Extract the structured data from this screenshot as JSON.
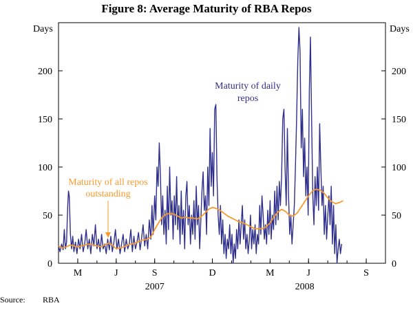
{
  "chart_data": {
    "type": "line",
    "title": "Figure 8: Average Maturity of RBA Repos",
    "left_axis_unit": "Days",
    "right_axis_unit": "Days",
    "ylim": [
      0,
      250
    ],
    "y_ticks": [
      0,
      50,
      100,
      150,
      200
    ],
    "x_range_months": [
      0,
      17
    ],
    "x_month_ticks": [
      {
        "label": "M",
        "month": 1
      },
      {
        "label": "J",
        "month": 3
      },
      {
        "label": "S",
        "month": 5
      },
      {
        "label": "D",
        "month": 8
      },
      {
        "label": "M",
        "month": 11
      },
      {
        "label": "J",
        "month": 13
      },
      {
        "label": "S",
        "month": 16
      }
    ],
    "year_labels": [
      {
        "label": "2007",
        "month": 5
      },
      {
        "label": "2008",
        "month": 12.8
      }
    ],
    "annotations": [
      {
        "lines": [
          "Maturity of daily",
          "repos"
        ],
        "series": "daily",
        "color": "#2e2e8c"
      },
      {
        "lines": [
          "Maturity of all repos",
          "outstanding"
        ],
        "series": "outstanding",
        "color": "#f79a2d"
      }
    ],
    "series": [
      {
        "name": "Maturity of daily repos",
        "color": "#2e2e8c",
        "points": [
          [
            0.0,
            18
          ],
          [
            0.08,
            12
          ],
          [
            0.16,
            20
          ],
          [
            0.24,
            14
          ],
          [
            0.3,
            35
          ],
          [
            0.36,
            15
          ],
          [
            0.42,
            22
          ],
          [
            0.48,
            60
          ],
          [
            0.52,
            75
          ],
          [
            0.56,
            70
          ],
          [
            0.62,
            30
          ],
          [
            0.68,
            15
          ],
          [
            0.74,
            28
          ],
          [
            0.8,
            12
          ],
          [
            0.88,
            22
          ],
          [
            0.96,
            10
          ],
          [
            1.04,
            25
          ],
          [
            1.12,
            15
          ],
          [
            1.2,
            30
          ],
          [
            1.28,
            12
          ],
          [
            1.36,
            20
          ],
          [
            1.44,
            35
          ],
          [
            1.52,
            15
          ],
          [
            1.6,
            25
          ],
          [
            1.68,
            10
          ],
          [
            1.76,
            30
          ],
          [
            1.84,
            18
          ],
          [
            1.92,
            40
          ],
          [
            2.0,
            15
          ],
          [
            2.08,
            25
          ],
          [
            2.16,
            12
          ],
          [
            2.24,
            30
          ],
          [
            2.32,
            15
          ],
          [
            2.4,
            20
          ],
          [
            2.48,
            10
          ],
          [
            2.56,
            25
          ],
          [
            2.64,
            14
          ],
          [
            2.72,
            28
          ],
          [
            2.8,
            12
          ],
          [
            2.88,
            22
          ],
          [
            2.96,
            35
          ],
          [
            3.04,
            15
          ],
          [
            3.12,
            25
          ],
          [
            3.2,
            10
          ],
          [
            3.28,
            20
          ],
          [
            3.36,
            30
          ],
          [
            3.44,
            12
          ],
          [
            3.52,
            25
          ],
          [
            3.6,
            15
          ],
          [
            3.68,
            20
          ],
          [
            3.76,
            35
          ],
          [
            3.84,
            12
          ],
          [
            3.92,
            28
          ],
          [
            4.0,
            15
          ],
          [
            4.08,
            22
          ],
          [
            4.16,
            32
          ],
          [
            4.24,
            14
          ],
          [
            4.32,
            26
          ],
          [
            4.4,
            40
          ],
          [
            4.48,
            18
          ],
          [
            4.56,
            30
          ],
          [
            4.64,
            15
          ],
          [
            4.72,
            45
          ],
          [
            4.8,
            25
          ],
          [
            4.86,
            60
          ],
          [
            4.92,
            30
          ],
          [
            5.0,
            70
          ],
          [
            5.06,
            45
          ],
          [
            5.12,
            100
          ],
          [
            5.18,
            80
          ],
          [
            5.24,
            125
          ],
          [
            5.3,
            90
          ],
          [
            5.36,
            40
          ],
          [
            5.42,
            70
          ],
          [
            5.48,
            30
          ],
          [
            5.54,
            55
          ],
          [
            5.6,
            20
          ],
          [
            5.66,
            80
          ],
          [
            5.72,
            35
          ],
          [
            5.78,
            100
          ],
          [
            5.84,
            50
          ],
          [
            5.9,
            65
          ],
          [
            5.96,
            25
          ],
          [
            6.02,
            70
          ],
          [
            6.08,
            40
          ],
          [
            6.14,
            90
          ],
          [
            6.2,
            35
          ],
          [
            6.26,
            60
          ],
          [
            6.32,
            20
          ],
          [
            6.38,
            75
          ],
          [
            6.44,
            30
          ],
          [
            6.5,
            55
          ],
          [
            6.56,
            15
          ],
          [
            6.62,
            70
          ],
          [
            6.68,
            85
          ],
          [
            6.74,
            40
          ],
          [
            6.8,
            60
          ],
          [
            6.86,
            20
          ],
          [
            6.92,
            50
          ],
          [
            6.98,
            30
          ],
          [
            7.04,
            65
          ],
          [
            7.1,
            25
          ],
          [
            7.16,
            80
          ],
          [
            7.22,
            40
          ],
          [
            7.28,
            60
          ],
          [
            7.34,
            15
          ],
          [
            7.4,
            45
          ],
          [
            7.46,
            75
          ],
          [
            7.52,
            95
          ],
          [
            7.58,
            55
          ],
          [
            7.64,
            70
          ],
          [
            7.7,
            30
          ],
          [
            7.76,
            100
          ],
          [
            7.82,
            60
          ],
          [
            7.88,
            140
          ],
          [
            7.94,
            80
          ],
          [
            8.0,
            115
          ],
          [
            8.06,
            70
          ],
          [
            8.12,
            160
          ],
          [
            8.18,
            165
          ],
          [
            8.24,
            90
          ],
          [
            8.3,
            50
          ],
          [
            8.36,
            30
          ],
          [
            8.42,
            60
          ],
          [
            8.48,
            20
          ],
          [
            8.54,
            45
          ],
          [
            8.6,
            10
          ],
          [
            8.66,
            30
          ],
          [
            8.72,
            5
          ],
          [
            8.78,
            25
          ],
          [
            8.84,
            15
          ],
          [
            8.9,
            40
          ],
          [
            8.96,
            10
          ],
          [
            9.02,
            30
          ],
          [
            9.08,
            0
          ],
          [
            9.14,
            20
          ],
          [
            9.2,
            5
          ],
          [
            9.26,
            35
          ],
          [
            9.32,
            15
          ],
          [
            9.38,
            45
          ],
          [
            9.44,
            20
          ],
          [
            9.5,
            40
          ],
          [
            9.56,
            60
          ],
          [
            9.62,
            25
          ],
          [
            9.68,
            45
          ],
          [
            9.74,
            15
          ],
          [
            9.8,
            30
          ],
          [
            9.86,
            10
          ],
          [
            9.92,
            25
          ],
          [
            9.98,
            50
          ],
          [
            10.04,
            15
          ],
          [
            10.1,
            35
          ],
          [
            10.16,
            20
          ],
          [
            10.22,
            40
          ],
          [
            10.28,
            10
          ],
          [
            10.34,
            30
          ],
          [
            10.4,
            20
          ],
          [
            10.46,
            60
          ],
          [
            10.52,
            30
          ],
          [
            10.58,
            70
          ],
          [
            10.64,
            50
          ],
          [
            10.7,
            25
          ],
          [
            10.76,
            40
          ],
          [
            10.82,
            20
          ],
          [
            10.88,
            55
          ],
          [
            10.94,
            30
          ],
          [
            11.0,
            65
          ],
          [
            11.06,
            25
          ],
          [
            11.12,
            50
          ],
          [
            11.18,
            35
          ],
          [
            11.24,
            75
          ],
          [
            11.3,
            40
          ],
          [
            11.36,
            80
          ],
          [
            11.42,
            45
          ],
          [
            11.48,
            85
          ],
          [
            11.54,
            60
          ],
          [
            11.6,
            90
          ],
          [
            11.66,
            150
          ],
          [
            11.72,
            160
          ],
          [
            11.78,
            100
          ],
          [
            11.84,
            60
          ],
          [
            11.9,
            140
          ],
          [
            11.96,
            70
          ],
          [
            12.02,
            30
          ],
          [
            12.08,
            50
          ],
          [
            12.14,
            20
          ],
          [
            12.2,
            40
          ],
          [
            12.26,
            60
          ],
          [
            12.32,
            100
          ],
          [
            12.38,
            150
          ],
          [
            12.44,
            210
          ],
          [
            12.5,
            245
          ],
          [
            12.56,
            220
          ],
          [
            12.62,
            120
          ],
          [
            12.68,
            160
          ],
          [
            12.74,
            90
          ],
          [
            12.8,
            130
          ],
          [
            12.86,
            70
          ],
          [
            12.92,
            100
          ],
          [
            12.98,
            50
          ],
          [
            13.04,
            180
          ],
          [
            13.1,
            235
          ],
          [
            13.16,
            150
          ],
          [
            13.22,
            70
          ],
          [
            13.28,
            40
          ],
          [
            13.34,
            90
          ],
          [
            13.4,
            60
          ],
          [
            13.46,
            100
          ],
          [
            13.52,
            55
          ],
          [
            13.58,
            145
          ],
          [
            13.64,
            100
          ],
          [
            13.7,
            60
          ],
          [
            13.76,
            80
          ],
          [
            13.82,
            30
          ],
          [
            13.88,
            60
          ],
          [
            13.94,
            25
          ],
          [
            14.0,
            50
          ],
          [
            14.06,
            70
          ],
          [
            14.12,
            40
          ],
          [
            14.18,
            80
          ],
          [
            14.24,
            20
          ],
          [
            14.3,
            60
          ],
          [
            14.36,
            10
          ],
          [
            14.42,
            40
          ],
          [
            14.48,
            0
          ],
          [
            14.54,
            15
          ],
          [
            14.6,
            25
          ],
          [
            14.66,
            10
          ],
          [
            14.72,
            20
          ]
        ]
      },
      {
        "name": "Maturity of all repos outstanding",
        "color": "#f79a2d",
        "points": [
          [
            0.0,
            18
          ],
          [
            0.2,
            16
          ],
          [
            0.4,
            17
          ],
          [
            0.6,
            19
          ],
          [
            0.8,
            18
          ],
          [
            1.0,
            17
          ],
          [
            1.2,
            18
          ],
          [
            1.4,
            19
          ],
          [
            1.6,
            20
          ],
          [
            1.8,
            19
          ],
          [
            2.0,
            18
          ],
          [
            2.2,
            17
          ],
          [
            2.4,
            19
          ],
          [
            2.6,
            21
          ],
          [
            2.8,
            19
          ],
          [
            3.0,
            15
          ],
          [
            3.2,
            16
          ],
          [
            3.4,
            17
          ],
          [
            3.6,
            19
          ],
          [
            3.8,
            20
          ],
          [
            4.0,
            21
          ],
          [
            4.2,
            23
          ],
          [
            4.4,
            24
          ],
          [
            4.6,
            25
          ],
          [
            4.8,
            27
          ],
          [
            5.0,
            35
          ],
          [
            5.2,
            42
          ],
          [
            5.4,
            48
          ],
          [
            5.6,
            51
          ],
          [
            5.8,
            52
          ],
          [
            6.0,
            51
          ],
          [
            6.2,
            49
          ],
          [
            6.4,
            47
          ],
          [
            6.6,
            48
          ],
          [
            6.8,
            47
          ],
          [
            7.0,
            47
          ],
          [
            7.2,
            46
          ],
          [
            7.4,
            48
          ],
          [
            7.6,
            52
          ],
          [
            7.8,
            56
          ],
          [
            8.0,
            58
          ],
          [
            8.2,
            57
          ],
          [
            8.4,
            55
          ],
          [
            8.6,
            52
          ],
          [
            8.8,
            49
          ],
          [
            9.0,
            47
          ],
          [
            9.2,
            45
          ],
          [
            9.4,
            43
          ],
          [
            9.6,
            42
          ],
          [
            9.8,
            40
          ],
          [
            10.0,
            38
          ],
          [
            10.2,
            36
          ],
          [
            10.4,
            36
          ],
          [
            10.6,
            36
          ],
          [
            10.8,
            38
          ],
          [
            11.0,
            42
          ],
          [
            11.2,
            48
          ],
          [
            11.4,
            53
          ],
          [
            11.6,
            56
          ],
          [
            11.8,
            54
          ],
          [
            12.0,
            50
          ],
          [
            12.2,
            49
          ],
          [
            12.4,
            52
          ],
          [
            12.6,
            58
          ],
          [
            12.8,
            64
          ],
          [
            13.0,
            70
          ],
          [
            13.2,
            75
          ],
          [
            13.4,
            77
          ],
          [
            13.6,
            76
          ],
          [
            13.8,
            73
          ],
          [
            14.0,
            68
          ],
          [
            14.2,
            64
          ],
          [
            14.4,
            62
          ],
          [
            14.6,
            63
          ],
          [
            14.8,
            65
          ]
        ]
      }
    ]
  },
  "source": {
    "label": "Source:",
    "value": "RBA"
  }
}
